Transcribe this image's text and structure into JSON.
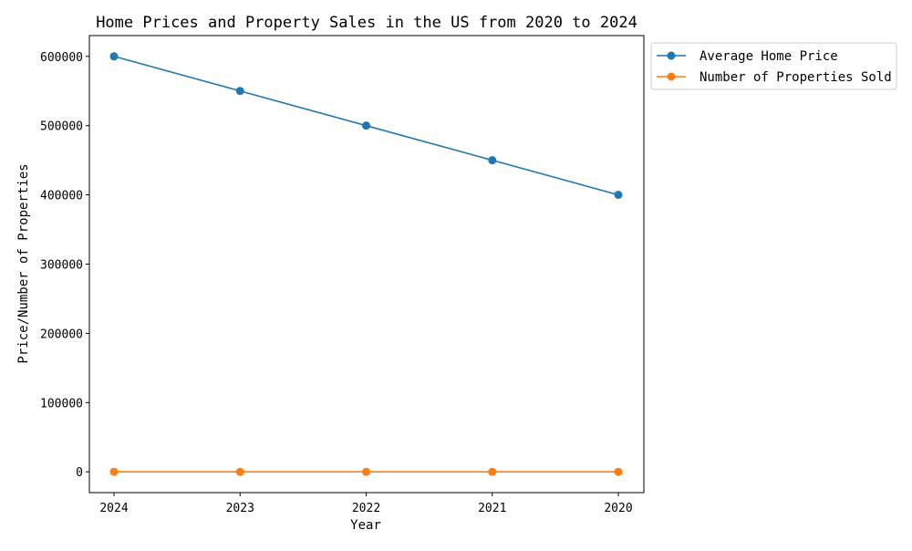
{
  "chart_data": {
    "type": "line",
    "title": "Home Prices and Property Sales in the US from 2020 to 2024",
    "xlabel": "Year",
    "ylabel": "Price/Number of Properties",
    "categories": [
      "2024",
      "2023",
      "2022",
      "2021",
      "2020"
    ],
    "series": [
      {
        "name": "Average Home Price",
        "color": "#1f77b4",
        "values": [
          600000,
          550000,
          500000,
          450000,
          400000
        ]
      },
      {
        "name": "Number of Properties Sold",
        "color": "#ff7f0e",
        "values": [
          0,
          0,
          0,
          0,
          0
        ]
      }
    ],
    "ylim": [
      -30000,
      630000
    ],
    "yticks": [
      0,
      100000,
      200000,
      300000,
      400000,
      500000,
      600000
    ],
    "yticklabels": [
      "0",
      "100000",
      "200000",
      "300000",
      "400000",
      "500000",
      "600000"
    ],
    "grid": false,
    "legend_position": "outside top-right",
    "marker": "circle"
  }
}
